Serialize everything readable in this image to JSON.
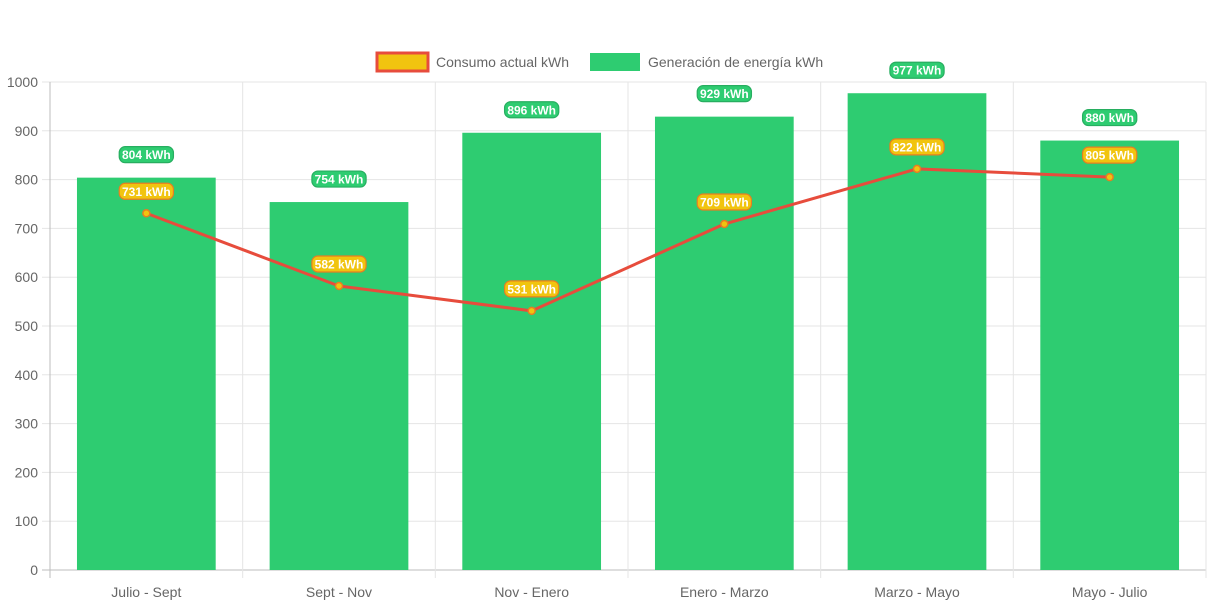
{
  "chart_data": {
    "type": "bar",
    "categories": [
      "Julio - Sept",
      "Sept - Nov",
      "Nov - Enero",
      "Enero - Marzo",
      "Marzo - Mayo",
      "Mayo - Julio"
    ],
    "series": [
      {
        "name": "Consumo actual kWh",
        "kind": "line",
        "values": [
          731,
          582,
          531,
          709,
          822,
          805
        ],
        "labels": [
          "731 kWh",
          "582 kWh",
          "531 kWh",
          "709 kWh",
          "822 kWh",
          "805 kWh"
        ],
        "color": "#e74c3c",
        "point_color": "#f1c40f",
        "label_bg": "#f1c40f",
        "label_border": "#e67e22"
      },
      {
        "name": "Generación de energía kWh",
        "kind": "bar",
        "values": [
          804,
          754,
          896,
          929,
          977,
          880
        ],
        "labels": [
          "804 kWh",
          "754 kWh",
          "896 kWh",
          "929 kWh",
          "977 kWh",
          "880 kWh"
        ],
        "color": "#2ecc71",
        "label_bg": "#2ecc71",
        "label_border": "#27ae60"
      }
    ],
    "ylim": [
      0,
      1000
    ],
    "yticks": [
      "0",
      "100",
      "200",
      "300",
      "400",
      "500",
      "600",
      "700",
      "800",
      "900",
      "1000"
    ],
    "grid": true,
    "legend": {
      "position": "top",
      "entries": [
        "Consumo actual kWh",
        "Generación de energía kWh"
      ]
    },
    "title": "",
    "xlabel": "",
    "ylabel": ""
  }
}
